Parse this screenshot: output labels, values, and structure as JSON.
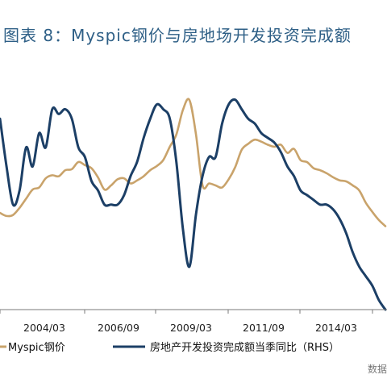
{
  "chart_data": {
    "type": "line",
    "title": "图表 8：Myspic钢价与房地场开发投资完成额",
    "x_tick_labels": [
      "2004/03",
      "2006/09",
      "2009/03",
      "2011/09",
      "2014/03"
    ],
    "series": [
      {
        "name": "Myspic钢价",
        "axis": "left",
        "color": "#c9a36b",
        "values": [
          95,
          92,
          93,
          100,
          109,
          118,
          120,
          129,
          132,
          131,
          137,
          138,
          145,
          142,
          139,
          130,
          118,
          122,
          128,
          129,
          124,
          127,
          131,
          137,
          141,
          147,
          160,
          172,
          196,
          206,
          172,
          122,
          124,
          122,
          120,
          128,
          140,
          157,
          163,
          167,
          165,
          162,
          160,
          162,
          154,
          158,
          147,
          145,
          139,
          137,
          134,
          130,
          127,
          126,
          122,
          117,
          105,
          96,
          88,
          82
        ]
      },
      {
        "name": "房地产开发投资完成额当季同比（RHS）",
        "axis": "right",
        "color": "#1c3f66",
        "values": [
          40,
          30,
          22,
          25,
          34,
          30,
          37,
          34,
          42,
          41,
          42,
          40,
          34,
          32,
          27,
          25,
          22,
          22,
          22,
          24,
          28,
          31,
          36,
          40,
          43,
          42,
          40,
          31,
          17,
          9,
          20,
          28,
          32,
          32,
          39,
          43,
          44,
          42,
          40,
          39,
          37,
          36,
          35,
          33,
          30,
          28,
          25,
          24,
          23,
          22,
          22,
          21,
          19,
          16,
          12,
          9,
          7,
          5,
          2,
          0
        ]
      }
    ],
    "source_text": "数据"
  }
}
